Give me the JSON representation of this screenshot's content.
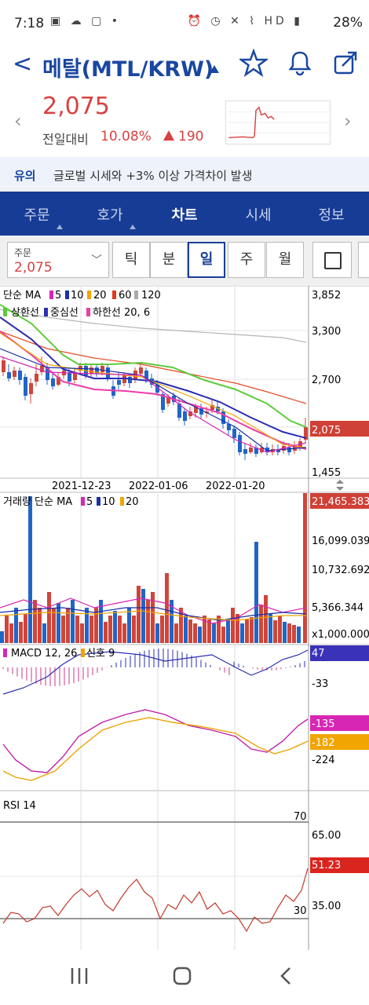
{
  "status_bar": {
    "time": "7:18",
    "battery": "28%",
    "left_icons": [
      "image-icon",
      "weather-icon",
      "message-icon",
      "dot-icon"
    ],
    "right_icons": [
      "alarm-icon",
      "clock-icon",
      "mute-icon",
      "wifi-icon",
      "hd-voice-icon",
      "signal-icon"
    ]
  },
  "header": {
    "title": "메탈(MTL/KRW)",
    "icons": [
      "back-icon",
      "star-icon",
      "bell-icon",
      "share-icon"
    ]
  },
  "quote": {
    "price": "2,075",
    "change_label": "전일대비",
    "change_pct": "10.08%",
    "change_val": "190",
    "color_up": "#d94141"
  },
  "notice": {
    "label": "유의",
    "text": "글로벌 시세와 +3% 이상 가격차이 발생"
  },
  "tabs": [
    "주문",
    "호가",
    "차트",
    "시세",
    "정보"
  ],
  "active_tab": "차트",
  "controls": {
    "order_label": "주문",
    "order_price": "2,075",
    "periods": [
      "틱",
      "분",
      "일",
      "주",
      "월"
    ],
    "active_period": "일"
  },
  "chart_data": [
    {
      "type": "candlestick",
      "legend_ma": {
        "label": "단순 MA",
        "periods": [
          "5",
          "10",
          "20",
          "60",
          "120"
        ],
        "colors": [
          "#d726b4",
          "#1c2fa5",
          "#f0a500",
          "#e03b1b",
          "#aaaaaa"
        ]
      },
      "legend_env": {
        "labels": [
          "상한선",
          "중심선",
          "하한선 20, 6"
        ],
        "colors": [
          "#5ccb3b",
          "#2b2fb3",
          "#ef3aa7"
        ]
      },
      "y_ticks": [
        "3,852",
        "3,300",
        "2,700",
        "1,455"
      ],
      "y_values": [
        3852,
        3300,
        2700,
        1455
      ],
      "last_price": "2,075",
      "last_value": 2075,
      "x_labels": [
        "2021-12-23",
        "2022-01-06",
        "2022-01-20"
      ],
      "ylim": [
        1455,
        3852
      ]
    },
    {
      "type": "bar",
      "title": "거래량 단순 MA",
      "periods": [
        "5",
        "10",
        "20"
      ],
      "y_ticks": [
        "21,465.383",
        "16,099.039",
        "10,732.692",
        "5,366.344",
        "x1,000.000"
      ]
    },
    {
      "type": "macd",
      "title": "MACD 12, 26",
      "signal": "신호 9",
      "y_ticks": [
        "47",
        "-33"
      ]
    },
    {
      "type": "line",
      "y_ticks": [
        "-135",
        "-182",
        "-224"
      ]
    },
    {
      "type": "rsi",
      "title": "RSI 14",
      "y_ticks": [
        "70",
        "65.00",
        "51.23",
        "35.00",
        "30"
      ]
    }
  ],
  "nav": [
    "recent-apps-icon",
    "home-icon",
    "back-nav-icon"
  ]
}
